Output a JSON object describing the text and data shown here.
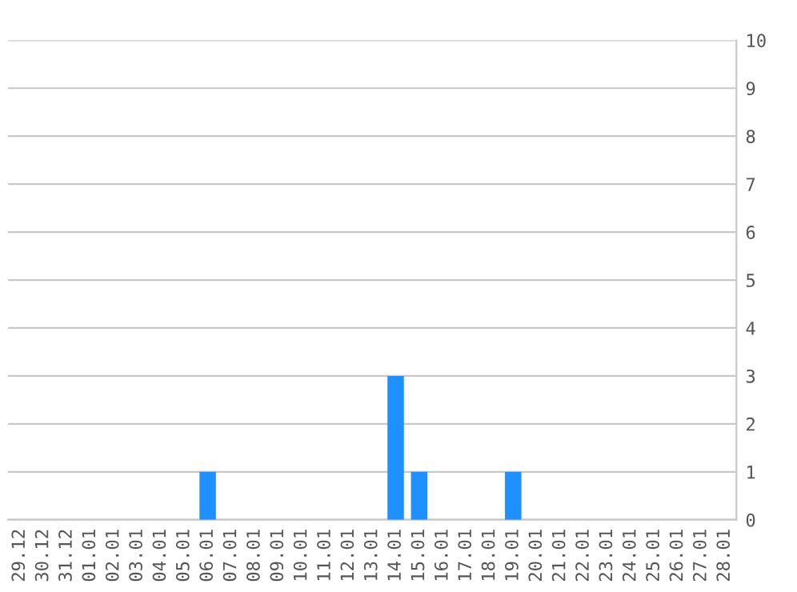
{
  "chart_data": {
    "type": "bar",
    "categories": [
      "29.12",
      "30.12",
      "31.12",
      "01.01",
      "02.01",
      "03.01",
      "04.01",
      "05.01",
      "06.01",
      "07.01",
      "08.01",
      "09.01",
      "10.01",
      "11.01",
      "12.01",
      "13.01",
      "14.01",
      "15.01",
      "16.01",
      "17.01",
      "18.01",
      "19.01",
      "20.01",
      "21.01",
      "22.01",
      "23.01",
      "24.01",
      "25.01",
      "26.01",
      "27.01",
      "28.01"
    ],
    "values": [
      0,
      0,
      0,
      0,
      0,
      0,
      0,
      0,
      1,
      0,
      0,
      0,
      0,
      0,
      0,
      0,
      3,
      1,
      0,
      0,
      0,
      1,
      0,
      0,
      0,
      0,
      0,
      0,
      0,
      0,
      0
    ],
    "color": "#1e90ff",
    "ylim": [
      0,
      10
    ],
    "yticks": [
      0,
      1,
      2,
      3,
      4,
      5,
      6,
      7,
      8,
      9,
      10
    ],
    "grid": "y"
  }
}
